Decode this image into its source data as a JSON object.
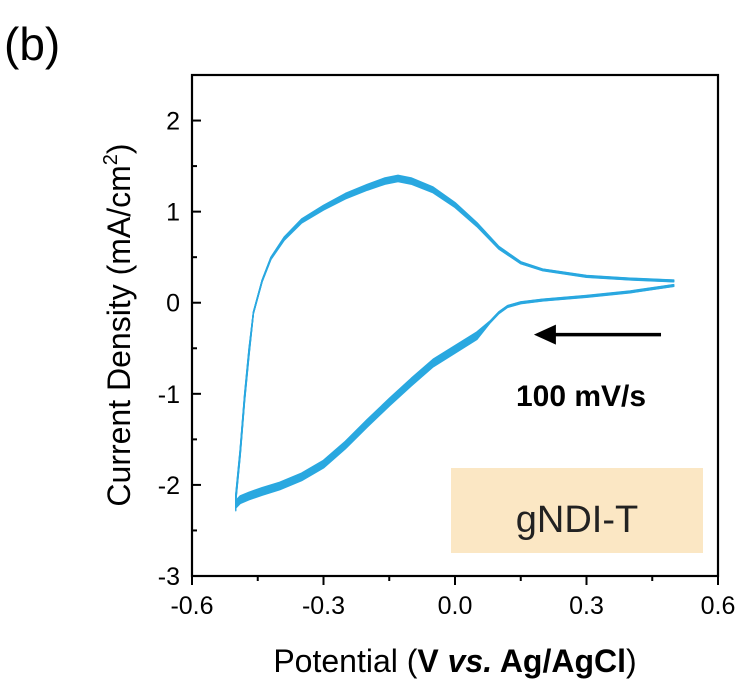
{
  "panel_label": "(b)",
  "chart_data": {
    "type": "line",
    "title": "",
    "xlabel": {
      "pre": "Potential (",
      "v": "V ",
      "vs": "vs.",
      "ref": " Ag/AgCl",
      "post": ")"
    },
    "ylabel": {
      "pre": "Current Density (",
      "unit": "mA/cm",
      "sup": "2",
      "post": ")"
    },
    "xlim": [
      -0.6,
      0.6
    ],
    "ylim": [
      -3,
      2.5
    ],
    "xticks": [
      -0.6,
      -0.3,
      0.0,
      0.3,
      0.6
    ],
    "xtick_labels": [
      "-0.6",
      "-0.3",
      "0.0",
      "0.3",
      "0.6"
    ],
    "yticks": [
      -3,
      -2,
      -1,
      0,
      1,
      2
    ],
    "ytick_labels": [
      "-3",
      "-2",
      "-1",
      "0",
      "1",
      "2"
    ],
    "grid": false,
    "color": "#2aa8e0",
    "cycles": 10,
    "cycle_spread": [
      0.0,
      0.14
    ],
    "series": [
      {
        "x": [
          0.5,
          0.4,
          0.3,
          0.2,
          0.15,
          0.1,
          0.05,
          0.0,
          -0.05,
          -0.1,
          -0.13,
          -0.16,
          -0.2,
          -0.25,
          -0.3,
          -0.35,
          -0.39,
          -0.42,
          -0.44,
          -0.46,
          -0.47,
          -0.48,
          -0.49,
          -0.5,
          -0.5,
          -0.5,
          -0.49,
          -0.47,
          -0.44,
          -0.4,
          -0.35,
          -0.3,
          -0.25,
          -0.2,
          -0.15,
          -0.1,
          -0.05,
          0.0,
          0.05,
          0.08,
          0.1,
          0.12,
          0.15,
          0.2,
          0.3,
          0.4,
          0.5
        ],
        "y": [
          0.25,
          0.27,
          0.3,
          0.37,
          0.45,
          0.62,
          0.88,
          1.1,
          1.27,
          1.37,
          1.4,
          1.37,
          1.3,
          1.2,
          1.07,
          0.92,
          0.72,
          0.5,
          0.25,
          -0.1,
          -0.5,
          -1.0,
          -1.6,
          -2.1,
          -2.2,
          -2.17,
          -2.12,
          -2.08,
          -2.03,
          -1.97,
          -1.87,
          -1.73,
          -1.52,
          -1.28,
          -1.05,
          -0.83,
          -0.62,
          -0.47,
          -0.32,
          -0.2,
          -0.1,
          -0.03,
          0.01,
          0.04,
          0.08,
          0.13,
          0.2
        ]
      }
    ],
    "annotation": {
      "text": "100 mV/s",
      "arrow_from_x": 0.47,
      "arrow_to_x": 0.18,
      "arrow_y": -0.35,
      "arrow_direction": "left"
    },
    "legend": {
      "label": "gNDI-T",
      "position": "bottom-right",
      "background": "#fbe7c4"
    }
  }
}
